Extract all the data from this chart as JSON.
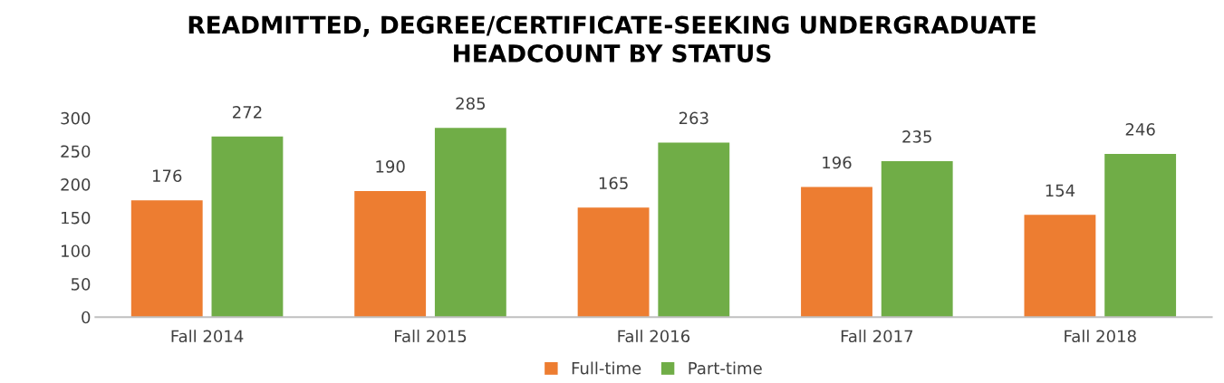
{
  "chart_data": {
    "type": "bar",
    "title": "READMITTED, DEGREE/CERTIFICATE-SEEKING UNDERGRADUATE\nHEADCOUNT BY STATUS",
    "categories": [
      "Fall 2014",
      "Fall 2015",
      "Fall 2016",
      "Fall 2017",
      "Fall 2018"
    ],
    "series": [
      {
        "name": "Full-time",
        "color": "#ed7d31",
        "values": [
          176,
          190,
          165,
          196,
          154
        ]
      },
      {
        "name": "Part-time",
        "color": "#70ad47",
        "values": [
          272,
          285,
          263,
          235,
          246
        ]
      }
    ],
    "ylim": [
      0,
      300
    ],
    "yticks": [
      0,
      50,
      100,
      150,
      200,
      250,
      300
    ],
    "grid": false,
    "legend": "bottom",
    "data_labels": true
  }
}
